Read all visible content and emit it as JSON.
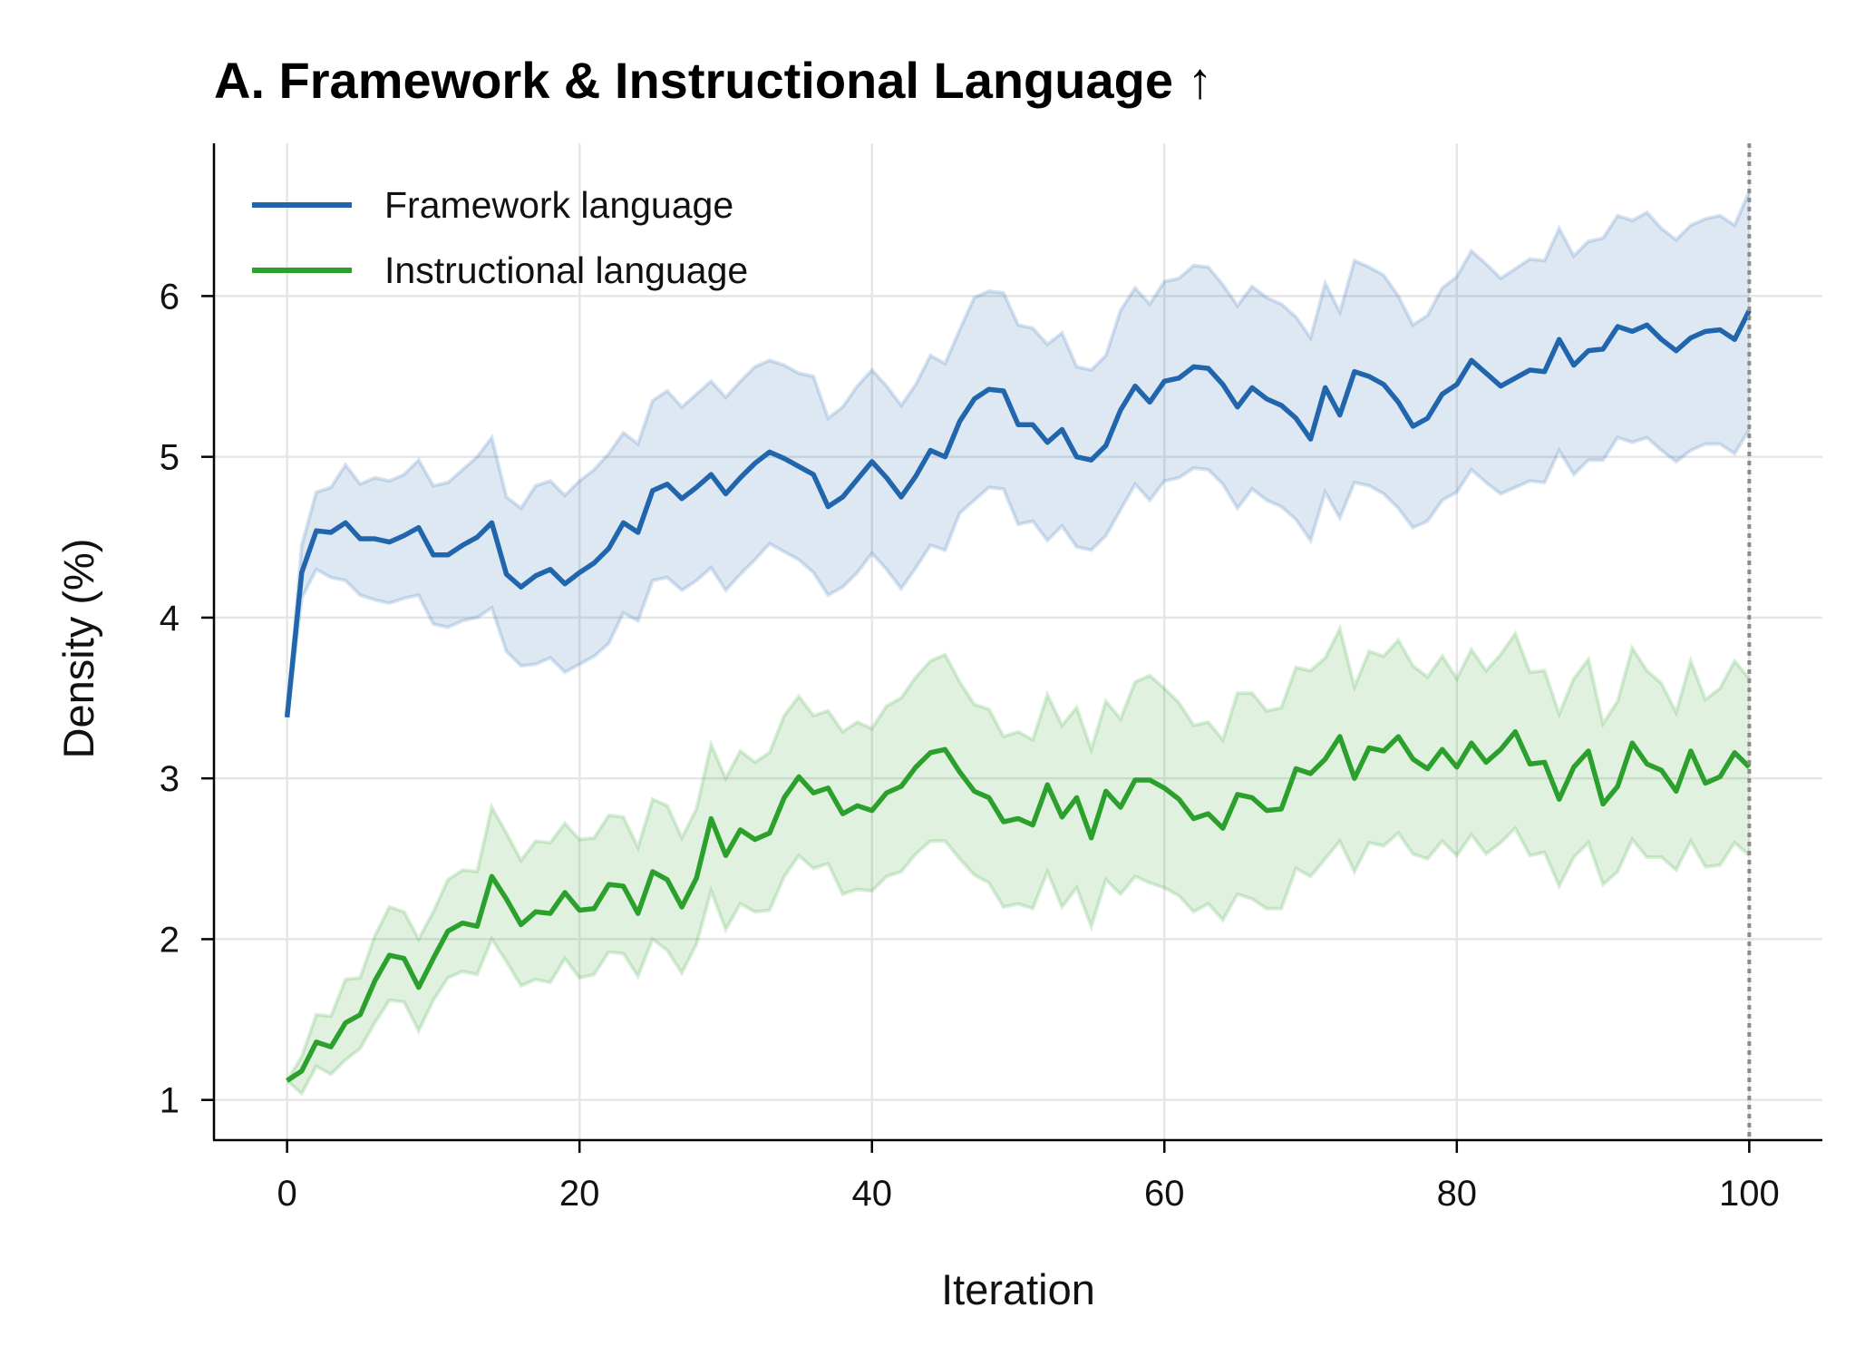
{
  "chart_data": {
    "type": "line",
    "title": "A. Framework & Instructional Language ↑",
    "xlabel": "Iteration",
    "ylabel": "Density (%)",
    "xlim": [
      -5,
      105
    ],
    "ylim": [
      0.75,
      6.95
    ],
    "xticks": [
      0,
      20,
      40,
      60,
      80,
      100
    ],
    "yticks": [
      1,
      2,
      3,
      4,
      5,
      6
    ],
    "grid": true,
    "legend_position": "top-left",
    "marker_line_x": 100,
    "series": [
      {
        "name": "Framework language",
        "color": "#2166ac",
        "mean": [
          3.38,
          4.28,
          4.54,
          4.53,
          4.59,
          4.49,
          4.49,
          4.47,
          4.51,
          4.56,
          4.39,
          4.39,
          4.45,
          4.5,
          4.59,
          4.27,
          4.19,
          4.26,
          4.3,
          4.21,
          4.28,
          4.34,
          4.43,
          4.59,
          4.53,
          4.79,
          4.83,
          4.74,
          4.81,
          4.89,
          4.77,
          4.87,
          4.96,
          5.03,
          4.99,
          4.94,
          4.89,
          4.69,
          4.75,
          4.86,
          4.97,
          4.87,
          4.75,
          4.88,
          5.04,
          5.0,
          5.22,
          5.36,
          5.42,
          5.41,
          5.2,
          5.2,
          5.09,
          5.17,
          5.0,
          4.98,
          5.07,
          5.29,
          5.44,
          5.34,
          5.47,
          5.49,
          5.56,
          5.55,
          5.45,
          5.31,
          5.43,
          5.36,
          5.32,
          5.24,
          5.11,
          5.43,
          5.26,
          5.53,
          5.5,
          5.45,
          5.34,
          5.19,
          5.24,
          5.39,
          5.45,
          5.6,
          5.52,
          5.44,
          5.49,
          5.54,
          5.53,
          5.73,
          5.57,
          5.66,
          5.67,
          5.81,
          5.78,
          5.82,
          5.73,
          5.66,
          5.74,
          5.78,
          5.79,
          5.73,
          5.91
        ],
        "upper": [
          3.38,
          4.45,
          4.78,
          4.81,
          4.95,
          4.83,
          4.87,
          4.85,
          4.89,
          4.98,
          4.82,
          4.84,
          4.92,
          5.0,
          5.12,
          4.75,
          4.68,
          4.82,
          4.85,
          4.76,
          4.85,
          4.92,
          5.02,
          5.15,
          5.08,
          5.35,
          5.41,
          5.31,
          5.39,
          5.47,
          5.37,
          5.47,
          5.56,
          5.6,
          5.57,
          5.52,
          5.5,
          5.24,
          5.31,
          5.44,
          5.54,
          5.44,
          5.32,
          5.45,
          5.63,
          5.58,
          5.79,
          5.99,
          6.03,
          6.02,
          5.82,
          5.8,
          5.7,
          5.77,
          5.56,
          5.54,
          5.63,
          5.91,
          6.05,
          5.95,
          6.09,
          6.11,
          6.19,
          6.18,
          6.07,
          5.94,
          6.06,
          5.99,
          5.95,
          5.87,
          5.74,
          6.08,
          5.9,
          6.22,
          6.18,
          6.13,
          6.0,
          5.82,
          5.88,
          6.05,
          6.12,
          6.28,
          6.2,
          6.11,
          6.17,
          6.23,
          6.22,
          6.42,
          6.25,
          6.34,
          6.36,
          6.5,
          6.47,
          6.52,
          6.42,
          6.35,
          6.44,
          6.48,
          6.5,
          6.44,
          6.65
        ],
        "lower": [
          3.38,
          4.12,
          4.3,
          4.25,
          4.23,
          4.14,
          4.11,
          4.09,
          4.12,
          4.14,
          3.96,
          3.94,
          3.98,
          4.0,
          4.06,
          3.79,
          3.7,
          3.71,
          3.75,
          3.66,
          3.71,
          3.76,
          3.84,
          4.03,
          3.98,
          4.23,
          4.25,
          4.17,
          4.23,
          4.31,
          4.17,
          4.27,
          4.36,
          4.46,
          4.41,
          4.36,
          4.28,
          4.14,
          4.19,
          4.28,
          4.4,
          4.3,
          4.18,
          4.31,
          4.45,
          4.42,
          4.65,
          4.73,
          4.81,
          4.8,
          4.58,
          4.6,
          4.48,
          4.57,
          4.44,
          4.42,
          4.51,
          4.67,
          4.83,
          4.73,
          4.85,
          4.87,
          4.93,
          4.92,
          4.83,
          4.68,
          4.8,
          4.73,
          4.69,
          4.61,
          4.48,
          4.78,
          4.62,
          4.84,
          4.82,
          4.77,
          4.68,
          4.56,
          4.6,
          4.73,
          4.78,
          4.92,
          4.84,
          4.77,
          4.81,
          4.85,
          4.84,
          5.04,
          4.89,
          4.98,
          4.98,
          5.12,
          5.09,
          5.12,
          5.04,
          4.97,
          5.04,
          5.08,
          5.08,
          5.02,
          5.17
        ]
      },
      {
        "name": "Instructional language",
        "color": "#2ca02c",
        "mean": [
          1.12,
          1.18,
          1.36,
          1.33,
          1.48,
          1.53,
          1.74,
          1.9,
          1.88,
          1.7,
          1.88,
          2.05,
          2.1,
          2.08,
          2.39,
          2.25,
          2.09,
          2.17,
          2.16,
          2.29,
          2.18,
          2.19,
          2.34,
          2.33,
          2.16,
          2.42,
          2.37,
          2.2,
          2.38,
          2.75,
          2.52,
          2.68,
          2.62,
          2.66,
          2.88,
          3.01,
          2.91,
          2.94,
          2.78,
          2.83,
          2.8,
          2.91,
          2.95,
          3.07,
          3.16,
          3.18,
          3.04,
          2.92,
          2.88,
          2.73,
          2.75,
          2.71,
          2.96,
          2.76,
          2.88,
          2.63,
          2.92,
          2.82,
          2.99,
          2.99,
          2.94,
          2.87,
          2.75,
          2.78,
          2.69,
          2.9,
          2.88,
          2.8,
          2.81,
          3.06,
          3.03,
          3.12,
          3.26,
          3.0,
          3.19,
          3.17,
          3.26,
          3.12,
          3.06,
          3.18,
          3.07,
          3.22,
          3.1,
          3.18,
          3.29,
          3.09,
          3.1,
          2.87,
          3.07,
          3.17,
          2.84,
          2.95,
          3.22,
          3.09,
          3.05,
          2.92,
          3.17,
          2.97,
          3.01,
          3.16,
          3.07
        ],
        "upper": [
          1.12,
          1.27,
          1.53,
          1.52,
          1.75,
          1.76,
          2.02,
          2.2,
          2.17,
          2.0,
          2.17,
          2.37,
          2.43,
          2.42,
          2.82,
          2.66,
          2.49,
          2.61,
          2.6,
          2.72,
          2.62,
          2.63,
          2.77,
          2.76,
          2.57,
          2.87,
          2.83,
          2.63,
          2.81,
          3.21,
          3.0,
          3.17,
          3.1,
          3.16,
          3.39,
          3.51,
          3.39,
          3.42,
          3.29,
          3.35,
          3.31,
          3.45,
          3.5,
          3.63,
          3.73,
          3.77,
          3.6,
          3.46,
          3.43,
          3.26,
          3.29,
          3.24,
          3.52,
          3.33,
          3.44,
          3.18,
          3.48,
          3.37,
          3.6,
          3.64,
          3.56,
          3.47,
          3.33,
          3.35,
          3.24,
          3.53,
          3.53,
          3.42,
          3.44,
          3.69,
          3.67,
          3.75,
          3.93,
          3.57,
          3.79,
          3.76,
          3.86,
          3.7,
          3.63,
          3.76,
          3.62,
          3.8,
          3.67,
          3.77,
          3.9,
          3.66,
          3.67,
          3.4,
          3.62,
          3.74,
          3.34,
          3.48,
          3.81,
          3.67,
          3.59,
          3.41,
          3.73,
          3.49,
          3.56,
          3.73,
          3.62
        ],
        "lower": [
          1.12,
          1.04,
          1.21,
          1.16,
          1.25,
          1.32,
          1.48,
          1.62,
          1.61,
          1.43,
          1.62,
          1.76,
          1.8,
          1.78,
          2.0,
          1.86,
          1.71,
          1.75,
          1.73,
          1.88,
          1.76,
          1.78,
          1.92,
          1.91,
          1.77,
          2.0,
          1.93,
          1.79,
          1.97,
          2.3,
          2.06,
          2.22,
          2.17,
          2.18,
          2.39,
          2.52,
          2.44,
          2.47,
          2.28,
          2.31,
          2.3,
          2.39,
          2.42,
          2.53,
          2.61,
          2.61,
          2.5,
          2.4,
          2.35,
          2.2,
          2.22,
          2.19,
          2.42,
          2.2,
          2.32,
          2.08,
          2.37,
          2.28,
          2.39,
          2.35,
          2.32,
          2.27,
          2.17,
          2.22,
          2.12,
          2.28,
          2.25,
          2.19,
          2.19,
          2.44,
          2.39,
          2.5,
          2.61,
          2.42,
          2.6,
          2.58,
          2.66,
          2.53,
          2.5,
          2.61,
          2.52,
          2.65,
          2.53,
          2.6,
          2.69,
          2.52,
          2.54,
          2.33,
          2.51,
          2.6,
          2.34,
          2.42,
          2.62,
          2.51,
          2.51,
          2.43,
          2.61,
          2.45,
          2.46,
          2.6,
          2.52
        ]
      }
    ]
  }
}
